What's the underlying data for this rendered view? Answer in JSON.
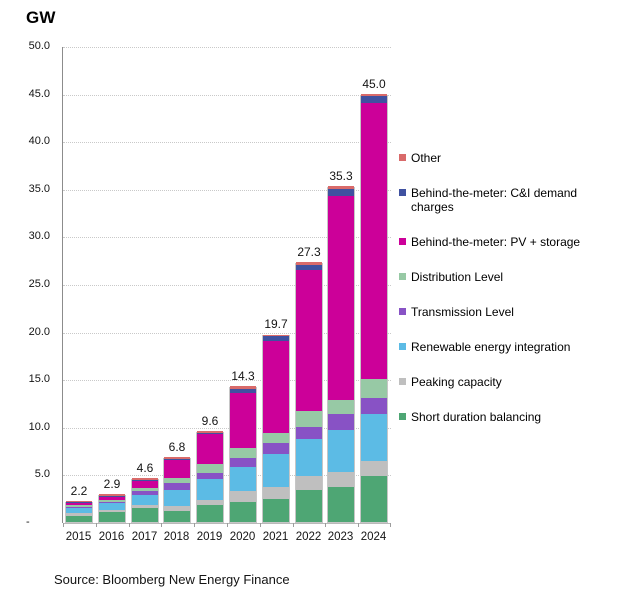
{
  "source_note": "Source: Bloomberg New Energy Finance",
  "axis": {
    "unit_label": "GW",
    "ytick_labels": [
      "50.0",
      "45.0",
      "40.0",
      "35.0",
      "30.0",
      "25.0",
      "20.0",
      "15.0",
      "10.0",
      "5.0"
    ],
    "ytick_zero": "-"
  },
  "chart_data": {
    "type": "bar",
    "stacked": true,
    "title": "GW",
    "xlabel": "",
    "ylabel": "GW",
    "ylim": [
      0,
      50
    ],
    "ytick_step": 5,
    "grid": "horizontal-dotted",
    "legend_position": "right",
    "categories": [
      "2015",
      "2016",
      "2017",
      "2018",
      "2019",
      "2020",
      "2021",
      "2022",
      "2023",
      "2024"
    ],
    "totals": [
      "2.2",
      "2.9",
      "4.6",
      "6.8",
      "9.6",
      "14.3",
      "19.7",
      "27.3",
      "35.3",
      "45.0"
    ],
    "stack_order": "bottom-to-top",
    "series": [
      {
        "name": "Short duration balancing",
        "color": "#4EA674",
        "values": [
          0.6,
          1.0,
          1.5,
          1.2,
          1.8,
          2.1,
          2.4,
          3.4,
          3.7,
          4.8
        ]
      },
      {
        "name": "Peaking capacity",
        "color": "#BFBFBF",
        "values": [
          0.3,
          0.3,
          0.3,
          0.5,
          0.5,
          1.2,
          1.3,
          1.4,
          1.6,
          1.6
        ]
      },
      {
        "name": "Renewable energy integration",
        "color": "#5CBBE5",
        "values": [
          0.6,
          0.7,
          1.0,
          1.7,
          2.2,
          2.5,
          3.4,
          3.9,
          4.4,
          5.0
        ]
      },
      {
        "name": "Transmission Level",
        "color": "#8852C5",
        "values": [
          0.1,
          0.1,
          0.5,
          0.7,
          0.7,
          0.9,
          1.2,
          1.3,
          1.6,
          1.6
        ]
      },
      {
        "name": "Distribution Level",
        "color": "#97C9A5",
        "values": [
          0.2,
          0.2,
          0.3,
          0.5,
          0.9,
          1.1,
          1.1,
          1.7,
          1.5,
          2.0
        ]
      },
      {
        "name": "Behind-the-meter: PV + storage",
        "color": "#CC0099",
        "values": [
          0.25,
          0.35,
          0.7,
          1.9,
          3.1,
          5.8,
          9.6,
          14.8,
          21.5,
          29.0
        ]
      },
      {
        "name": "Behind-the-meter: C&I demand charges",
        "color": "#3F51A0",
        "values": [
          0.05,
          0.05,
          0.1,
          0.1,
          0.2,
          0.4,
          0.5,
          0.5,
          0.7,
          0.8
        ]
      },
      {
        "name": "Other",
        "color": "#D96A6A",
        "values": [
          0.1,
          0.2,
          0.2,
          0.2,
          0.2,
          0.3,
          0.2,
          0.3,
          0.3,
          0.2
        ]
      }
    ]
  }
}
